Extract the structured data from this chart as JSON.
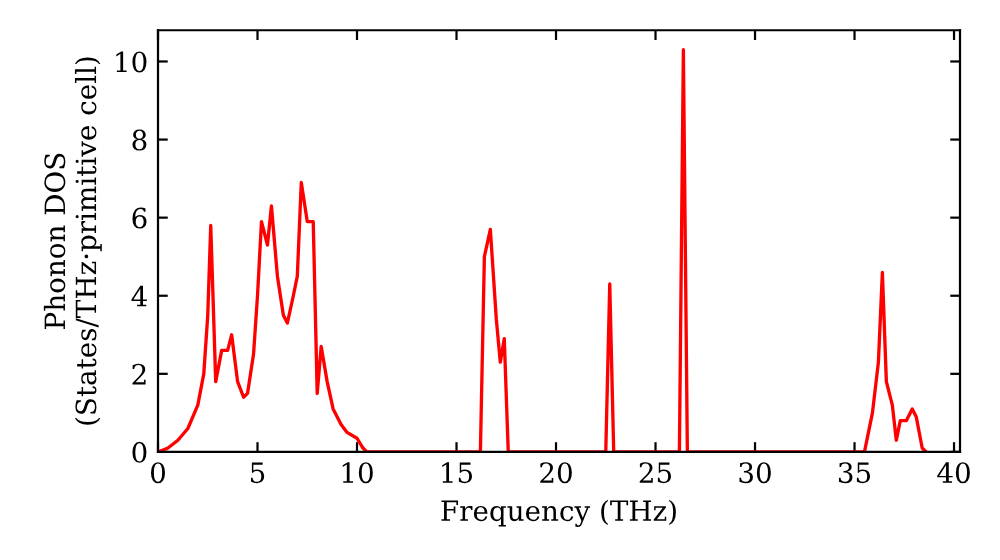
{
  "chart_data": {
    "type": "line",
    "xlabel": "Frequency (THz)",
    "ylabel": "Phonon DOS\n(States/THz·primitive cell)",
    "x": [
      0,
      0.5,
      1,
      1.5,
      2,
      2.3,
      2.5,
      2.65,
      2.9,
      3.2,
      3.5,
      3.7,
      4.0,
      4.3,
      4.5,
      4.8,
      5.0,
      5.2,
      5.5,
      5.7,
      6.0,
      6.3,
      6.5,
      6.8,
      7.0,
      7.2,
      7.5,
      7.8,
      8.0,
      8.2,
      8.5,
      8.8,
      9.2,
      9.5,
      10,
      10.3,
      10.5,
      16.2,
      16.4,
      16.7,
      17.0,
      17.2,
      17.4,
      17.6,
      22.5,
      22.7,
      22.9,
      26.2,
      26.4,
      26.6,
      35.5,
      35.9,
      36.2,
      36.4,
      36.6,
      36.9,
      37.1,
      37.3,
      37.6,
      37.9,
      38.1,
      38.4,
      38.6
    ],
    "series": [
      {
        "color": "#ff0000",
        "values": [
          0,
          0.1,
          0.3,
          0.6,
          1.2,
          2.0,
          3.5,
          5.8,
          1.8,
          2.6,
          2.6,
          3.0,
          1.8,
          1.4,
          1.5,
          2.5,
          4.0,
          5.9,
          5.3,
          6.3,
          4.5,
          3.5,
          3.3,
          4.0,
          4.5,
          6.9,
          5.9,
          5.9,
          1.5,
          2.7,
          1.8,
          1.1,
          0.7,
          0.5,
          0.35,
          0.1,
          0,
          0,
          5.0,
          5.7,
          3.4,
          2.3,
          2.9,
          0,
          0,
          4.3,
          0,
          0,
          10.3,
          0,
          0,
          1.0,
          2.3,
          4.6,
          1.8,
          1.2,
          0.3,
          0.8,
          0.8,
          1.1,
          0.9,
          0.1,
          0
        ]
      }
    ],
    "xlim": [
      0,
      40.3
    ],
    "ylim": [
      0,
      10.8
    ],
    "xticks": [
      0,
      5,
      10,
      15,
      20,
      25,
      30,
      35,
      40
    ],
    "yticks": [
      0,
      2,
      4,
      6,
      8,
      10
    ],
    "grid": false,
    "legend": false,
    "marker": "none",
    "line_style": "solid"
  }
}
